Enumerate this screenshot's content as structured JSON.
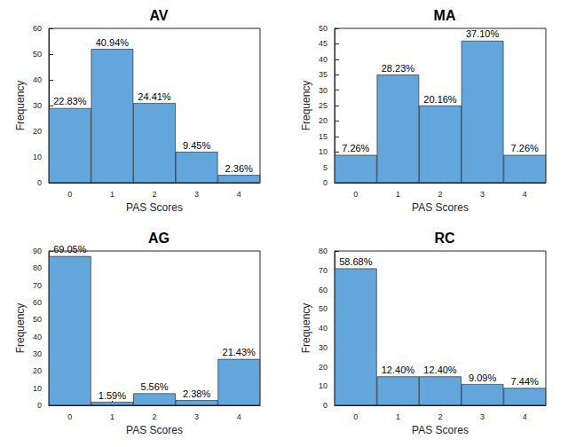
{
  "chart_data": [
    {
      "type": "bar",
      "title": "AV",
      "x_label": "PAS Scores",
      "y_label": "Frequency",
      "categories": [
        "0",
        "1",
        "2",
        "3",
        "4"
      ],
      "values": [
        29,
        52,
        31,
        12,
        3
      ],
      "value_labels": [
        "22.83%",
        "40.94%",
        "24.41%",
        "9.45%",
        "2.36%"
      ],
      "color": "#62a6dc",
      "ylim": [
        0,
        60
      ],
      "yticks": [
        0,
        10,
        20,
        30,
        40,
        50,
        60
      ],
      "grid": false,
      "data_labels": true
    },
    {
      "type": "bar",
      "title": "MA",
      "x_label": "PAS Scores",
      "y_label": "Frequency",
      "categories": [
        "0",
        "1",
        "2",
        "3",
        "4"
      ],
      "values": [
        9,
        35,
        25,
        46,
        9
      ],
      "value_labels": [
        "7.26%",
        "28.23%",
        "20.16%",
        "37.10%",
        "7.26%"
      ],
      "color": "#62a6dc",
      "ylim": [
        0,
        50
      ],
      "yticks": [
        0,
        5,
        10,
        15,
        20,
        25,
        30,
        35,
        40,
        45,
        50
      ],
      "grid": false,
      "data_labels": true
    },
    {
      "type": "bar",
      "title": "AG",
      "x_label": "PAS Scores",
      "y_label": "Frequency",
      "categories": [
        "0",
        "1",
        "2",
        "3",
        "4"
      ],
      "values": [
        87,
        2,
        7,
        3,
        27
      ],
      "value_labels": [
        "69.05%",
        "1.59%",
        "5.56%",
        "2.38%",
        "21.43%"
      ],
      "color": "#62a6dc",
      "ylim": [
        0,
        90
      ],
      "yticks": [
        0,
        10,
        20,
        30,
        40,
        50,
        60,
        70,
        80,
        90
      ],
      "grid": false,
      "data_labels": true
    },
    {
      "type": "bar",
      "title": "RC",
      "x_label": "PAS Scores",
      "y_label": "Frequency",
      "categories": [
        "0",
        "1",
        "2",
        "3",
        "4"
      ],
      "values": [
        71,
        15,
        15,
        11,
        9
      ],
      "value_labels": [
        "58.68%",
        "12.40%",
        "12.40%",
        "9.09%",
        "7.44%"
      ],
      "color": "#62a6dc",
      "ylim": [
        0,
        80
      ],
      "yticks": [
        0,
        10,
        20,
        30,
        40,
        50,
        60,
        70,
        80
      ],
      "grid": false,
      "data_labels": true
    }
  ]
}
